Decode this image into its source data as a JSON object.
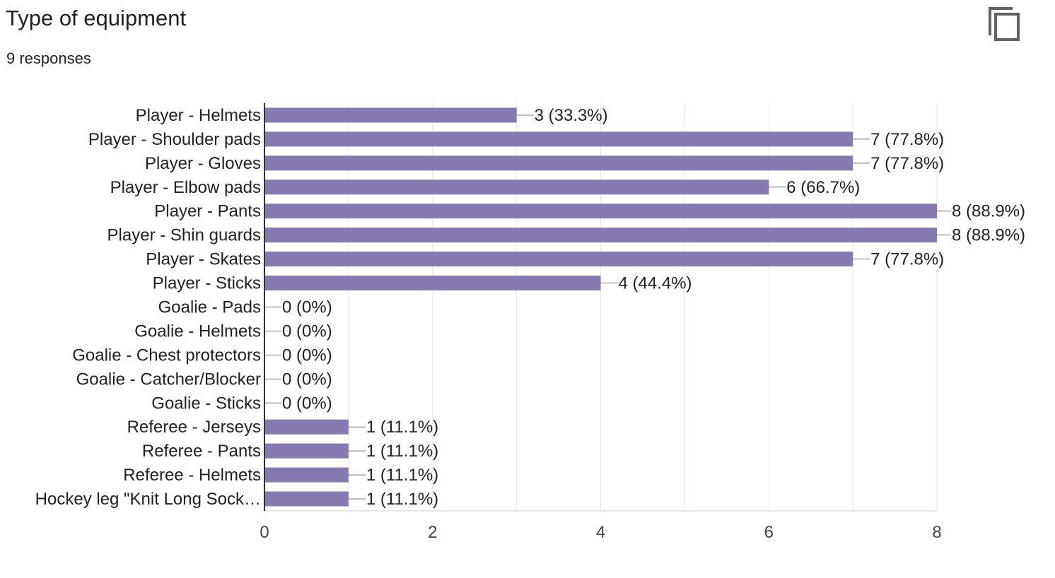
{
  "question": {
    "title": "Type of equipment",
    "responses": "9 responses"
  },
  "copy_icon": "copy-icon",
  "colors": {
    "bar": "#8579b0",
    "grid": "#e8e8e8",
    "axis": "#333333"
  },
  "chart_data": {
    "type": "bar",
    "orientation": "horizontal",
    "categories": [
      "Player - Helmets",
      "Player - Shoulder pads",
      "Player - Gloves",
      "Player - Elbow pads",
      "Player - Pants",
      "Player - Shin guards",
      "Player - Skates",
      "Player - Sticks",
      "Goalie - Pads",
      "Goalie - Helmets",
      "Goalie - Chest protectors",
      "Goalie - Catcher/Blocker",
      "Goalie - Sticks",
      "Referee - Jerseys",
      "Referee - Pants",
      "Referee - Helmets",
      "Hockey leg \"Knit Long Sock…"
    ],
    "values": [
      3,
      7,
      7,
      6,
      8,
      8,
      7,
      4,
      0,
      0,
      0,
      0,
      0,
      1,
      1,
      1,
      1
    ],
    "data_labels": [
      "3 (33.3%)",
      "7 (77.8%)",
      "7 (77.8%)",
      "6 (66.7%)",
      "8 (88.9%)",
      "8 (88.9%)",
      "7 (77.8%)",
      "4 (44.4%)",
      "0 (0%)",
      "0 (0%)",
      "0 (0%)",
      "0 (0%)",
      "0 (0%)",
      "1 (11.1%)",
      "1 (11.1%)",
      "1 (11.1%)",
      "1 (11.1%)"
    ],
    "xlim": [
      0,
      8
    ],
    "xticks": [
      "0",
      "2",
      "4",
      "6",
      "8"
    ],
    "grid": true
  }
}
